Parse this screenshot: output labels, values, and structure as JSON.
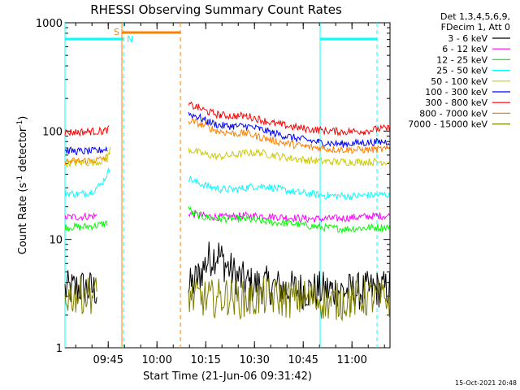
{
  "chart_data": {
    "type": "line",
    "title": "RHESSI Observing Summary Count Rates",
    "xlabel": "Start Time (21-Jun-06 09:31:42)",
    "ylabel_prefix": "Count Rate (s",
    "ylabel_sup1": "-1",
    "ylabel_mid": " detector",
    "ylabel_sup2": "-1",
    "ylabel_suffix": ")",
    "y_scale": "log",
    "ylim": [
      1,
      1000
    ],
    "xlim_minutes": [
      0,
      100
    ],
    "y_ticks": [
      {
        "value": 1,
        "label": "1"
      },
      {
        "value": 10,
        "label": "10"
      },
      {
        "value": 100,
        "label": "100"
      },
      {
        "value": 1000,
        "label": "1000"
      }
    ],
    "x_ticks": [
      {
        "minute": 13.3,
        "label": "09:45"
      },
      {
        "minute": 28.3,
        "label": "10:00"
      },
      {
        "minute": 43.3,
        "label": "10:15"
      },
      {
        "minute": 58.3,
        "label": "10:30"
      },
      {
        "minute": 73.3,
        "label": "10:45"
      },
      {
        "minute": 88.3,
        "label": "11:00"
      }
    ],
    "legend_header": [
      "Det 1,3,4,5,6,9,",
      "FDecim 1, Att 0"
    ],
    "series": [
      {
        "name": "3 - 6 keV",
        "color": "#000000",
        "points": [
          [
            0,
            3.4
          ],
          [
            5,
            3.6
          ],
          [
            10,
            3.4
          ],
          [
            15,
            null
          ],
          [
            37,
            null
          ],
          [
            38,
            3.5
          ],
          [
            41,
            4.5
          ],
          [
            44,
            6.5
          ],
          [
            47,
            7.5
          ],
          [
            49,
            6
          ],
          [
            53,
            4.5
          ],
          [
            57,
            3.8
          ],
          [
            62,
            3.8
          ],
          [
            68,
            3.5
          ],
          [
            75,
            3.4
          ],
          [
            82,
            3.4
          ],
          [
            90,
            3.3
          ],
          [
            96,
            3.5
          ],
          [
            100,
            3.5
          ]
        ]
      },
      {
        "name": "6 - 12 keV",
        "color": "#ff00ff",
        "points": [
          [
            0,
            16
          ],
          [
            5,
            16.2
          ],
          [
            10,
            16.5
          ],
          [
            15,
            null
          ],
          [
            37,
            null
          ],
          [
            38,
            17.5
          ],
          [
            42,
            16.5
          ],
          [
            48,
            16
          ],
          [
            55,
            16.5
          ],
          [
            60,
            16.5
          ],
          [
            68,
            16
          ],
          [
            75,
            15.5
          ],
          [
            82,
            15.5
          ],
          [
            90,
            16
          ],
          [
            96,
            16.5
          ],
          [
            100,
            16.5
          ]
        ]
      },
      {
        "name": "12 - 25 keV",
        "color": "#00ff00",
        "points": [
          [
            0,
            13
          ],
          [
            5,
            13
          ],
          [
            10,
            13.5
          ],
          [
            13,
            14.2
          ],
          [
            15,
            null
          ],
          [
            37,
            null
          ],
          [
            38,
            20
          ],
          [
            39,
            17.5
          ],
          [
            43,
            16
          ],
          [
            48,
            15.5
          ],
          [
            55,
            15.5
          ],
          [
            62,
            14.5
          ],
          [
            70,
            14
          ],
          [
            78,
            13
          ],
          [
            86,
            12.5
          ],
          [
            92,
            12.8
          ],
          [
            100,
            13
          ]
        ]
      },
      {
        "name": "25 - 50 keV",
        "color": "#00ffff",
        "points": [
          [
            0,
            27
          ],
          [
            4,
            26
          ],
          [
            8,
            27.5
          ],
          [
            11,
            32
          ],
          [
            14,
            45
          ],
          [
            15,
            null
          ],
          [
            37,
            null
          ],
          [
            38,
            37
          ],
          [
            40,
            34
          ],
          [
            44,
            31
          ],
          [
            48,
            29
          ],
          [
            53,
            29
          ],
          [
            58,
            31
          ],
          [
            62,
            31
          ],
          [
            66,
            29
          ],
          [
            72,
            27
          ],
          [
            80,
            25.5
          ],
          [
            87,
            25
          ],
          [
            93,
            25.5
          ],
          [
            100,
            26
          ]
        ]
      },
      {
        "name": "50 - 100 keV",
        "color": "#cccc00",
        "points": [
          [
            0,
            51
          ],
          [
            5,
            51
          ],
          [
            10,
            52
          ],
          [
            13,
            55
          ],
          [
            14,
            70
          ],
          [
            15,
            null
          ],
          [
            37,
            null
          ],
          [
            38,
            68
          ],
          [
            42,
            62
          ],
          [
            47,
            58
          ],
          [
            52,
            60
          ],
          [
            56,
            63
          ],
          [
            60,
            63
          ],
          [
            64,
            60
          ],
          [
            68,
            57
          ],
          [
            74,
            54
          ],
          [
            82,
            52
          ],
          [
            90,
            52
          ],
          [
            100,
            52
          ]
        ]
      },
      {
        "name": "100 - 300 keV",
        "color": "#0000ff",
        "points": [
          [
            0,
            66
          ],
          [
            5,
            65
          ],
          [
            10,
            65.5
          ],
          [
            13,
            69
          ],
          [
            15,
            null
          ],
          [
            37,
            null
          ],
          [
            38,
            145
          ],
          [
            41,
            135
          ],
          [
            44,
            122
          ],
          [
            48,
            112
          ],
          [
            52,
            111
          ],
          [
            56,
            111
          ],
          [
            60,
            104
          ],
          [
            64,
            96
          ],
          [
            68,
            90
          ],
          [
            72,
            85
          ],
          [
            78,
            79
          ],
          [
            85,
            76
          ],
          [
            92,
            78
          ],
          [
            100,
            80
          ]
        ]
      },
      {
        "name": "300 - 800 keV",
        "color": "#ff0000",
        "points": [
          [
            0,
            97
          ],
          [
            4,
            98
          ],
          [
            8,
            99
          ],
          [
            12,
            100
          ],
          [
            13.5,
            104
          ],
          [
            15,
            null
          ],
          [
            37,
            null
          ],
          [
            38,
            175
          ],
          [
            41,
            165
          ],
          [
            44,
            150
          ],
          [
            48,
            140
          ],
          [
            52,
            138
          ],
          [
            56,
            138
          ],
          [
            60,
            128
          ],
          [
            64,
            118
          ],
          [
            68,
            112
          ],
          [
            72,
            107
          ],
          [
            78,
            102
          ],
          [
            85,
            99
          ],
          [
            92,
            100
          ],
          [
            96,
            104
          ],
          [
            100,
            106
          ]
        ]
      },
      {
        "name": "800 - 7000 keV",
        "color": "#ff8000",
        "points": [
          [
            0,
            52
          ],
          [
            5,
            53
          ],
          [
            10,
            54
          ],
          [
            13,
            57
          ],
          [
            15,
            null
          ],
          [
            37,
            null
          ],
          [
            38,
            125
          ],
          [
            42,
            115
          ],
          [
            47,
            100
          ],
          [
            52,
            95
          ],
          [
            56,
            95
          ],
          [
            60,
            88
          ],
          [
            64,
            82
          ],
          [
            68,
            77
          ],
          [
            74,
            72
          ],
          [
            82,
            68
          ],
          [
            90,
            67
          ],
          [
            100,
            68
          ]
        ]
      },
      {
        "name": "7000 - 15000 keV",
        "color": "#808000",
        "points": [
          [
            0,
            3.0
          ],
          [
            5,
            3.1
          ],
          [
            10,
            3.1
          ],
          [
            15,
            null
          ],
          [
            37,
            null
          ],
          [
            38,
            3.0
          ],
          [
            44,
            2.8
          ],
          [
            50,
            3.0
          ],
          [
            56,
            2.7
          ],
          [
            62,
            3.0
          ],
          [
            68,
            2.8
          ],
          [
            75,
            2.9
          ],
          [
            82,
            2.6
          ],
          [
            88,
            2.8
          ],
          [
            95,
            2.9
          ],
          [
            100,
            2.8
          ]
        ]
      }
    ],
    "markers": [
      {
        "label": "S",
        "color": "#ff8000"
      },
      {
        "label": "N",
        "color": "#00ffff"
      }
    ]
  },
  "timestamp": "15-Oct-2021 20:48"
}
